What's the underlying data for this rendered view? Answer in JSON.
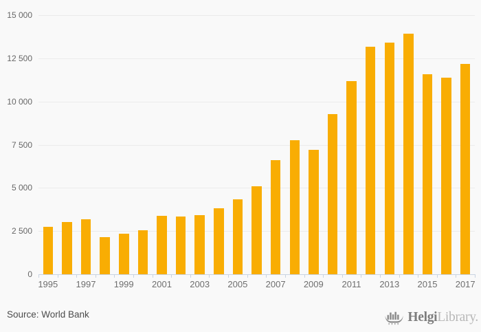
{
  "chart_data": {
    "type": "bar",
    "title": "",
    "categories": [
      "1995",
      "1996",
      "1997",
      "1998",
      "1999",
      "2000",
      "2001",
      "2002",
      "2003",
      "2004",
      "2005",
      "2006",
      "2007",
      "2008",
      "2009",
      "2010",
      "2011",
      "2012",
      "2013",
      "2014",
      "2015",
      "2016",
      "2017"
    ],
    "values": [
      2740,
      3020,
      3170,
      2140,
      2360,
      2530,
      3370,
      3330,
      3410,
      3810,
      4330,
      5100,
      6600,
      7770,
      7200,
      9280,
      11190,
      13180,
      13400,
      13910,
      11590,
      11390,
      12170
    ],
    "xlabel": "",
    "ylabel": "",
    "ylim": [
      0,
      15000
    ],
    "ytick_step": 2500,
    "ytick_labels": [
      "0",
      "2 500",
      "5 000",
      "7 500",
      "10 000",
      "12 500",
      "15 000"
    ],
    "xtick_labeled_years": [
      "1995",
      "1997",
      "1999",
      "2001",
      "2003",
      "2005",
      "2007",
      "2009",
      "2011",
      "2013",
      "2015",
      "2017"
    ],
    "grid": "horizontal",
    "legend": "none",
    "bar_color": "#f9ad03"
  },
  "footer": {
    "source": "Source: World Bank",
    "logo_primary": "Helgi",
    "logo_secondary": "Library."
  },
  "colors": {
    "background": "#f9f9f9",
    "gridline": "#ebebeb",
    "axis_line": "#c9d3e1",
    "bar": "#f9ad03"
  }
}
